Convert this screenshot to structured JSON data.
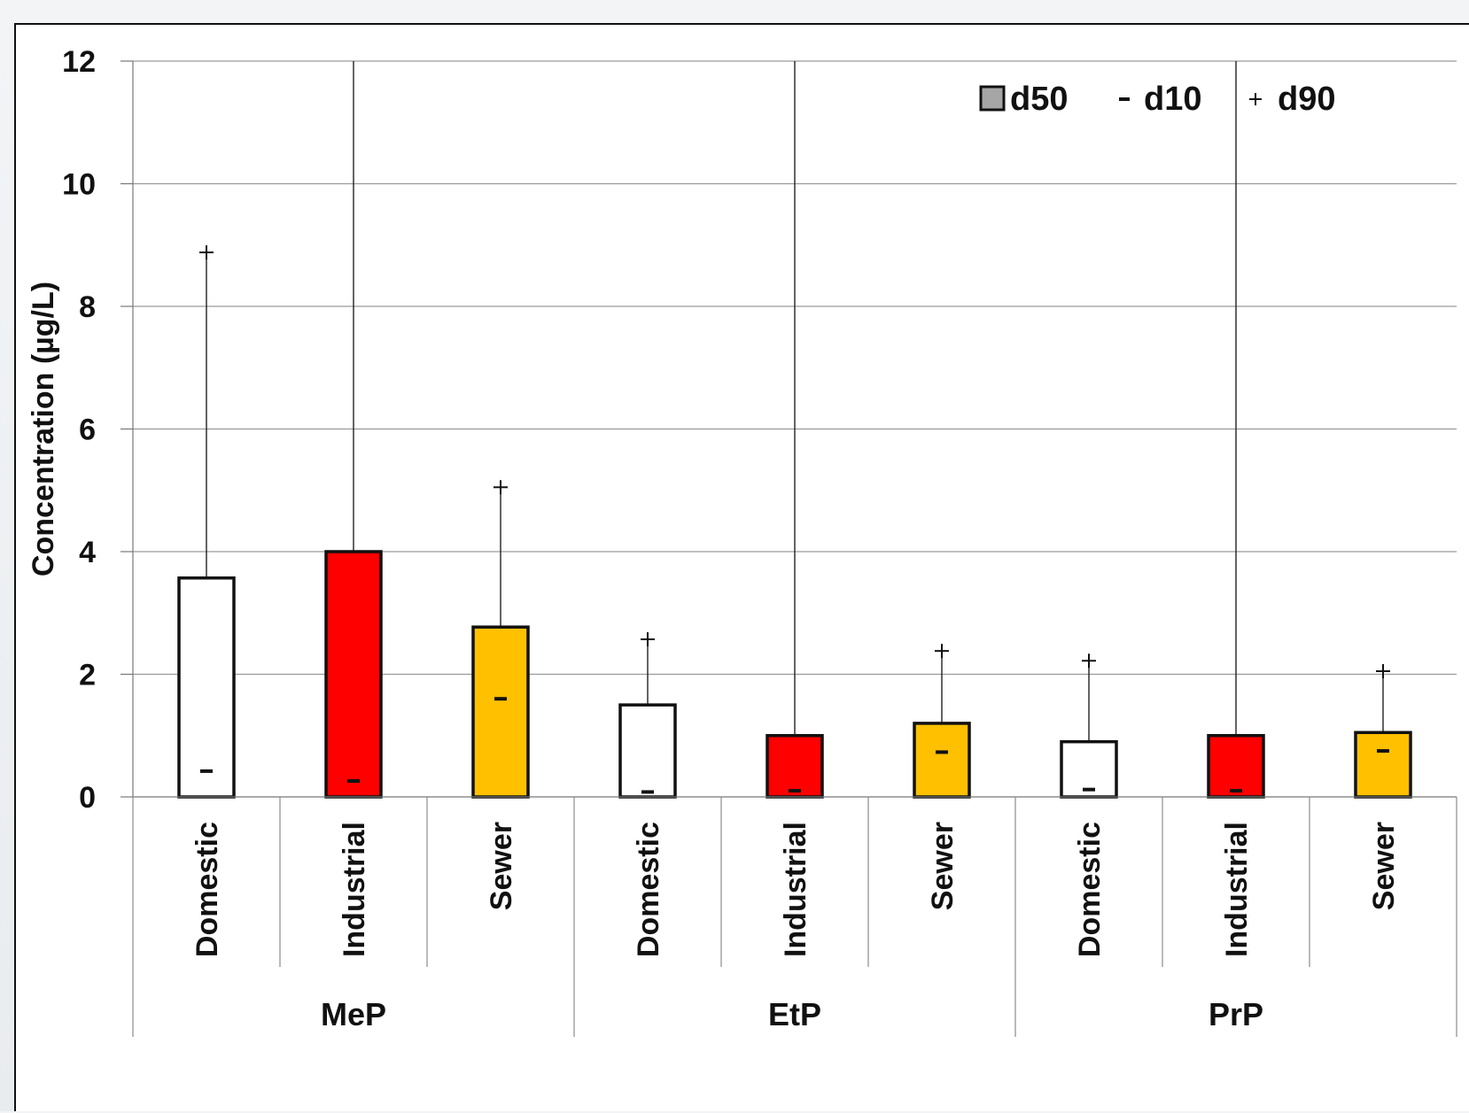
{
  "chart_data": {
    "type": "bar",
    "title": "",
    "ylabel": "Concentration (µg/L)",
    "xlabel": "",
    "ylim": [
      0,
      12
    ],
    "yticks": [
      "0",
      "2",
      "4",
      "6",
      "8",
      "10",
      "12"
    ],
    "grid": true,
    "legend": {
      "position": "top-right",
      "entries": [
        {
          "marker": "square",
          "label": "d50"
        },
        {
          "marker": "dash",
          "label": "d10"
        },
        {
          "marker": "plus",
          "label": "d90"
        }
      ]
    },
    "groups": [
      "MeP",
      "EtP",
      "PrP"
    ],
    "categories": [
      "Domestic",
      "Industrial",
      "Sewer",
      "Domestic",
      "Industrial",
      "Sewer",
      "Domestic",
      "Industrial",
      "Sewer"
    ],
    "category_colors": {
      "Domestic": "#ffffff",
      "Industrial": "#ff0000",
      "Sewer": "#ffc000"
    },
    "series": [
      {
        "name": "d50",
        "values": [
          3.57,
          4.0,
          2.77,
          1.5,
          1.0,
          1.2,
          0.9,
          1.0,
          1.05
        ]
      },
      {
        "name": "d10",
        "values": [
          0.42,
          0.26,
          1.6,
          0.08,
          0.1,
          0.73,
          0.12,
          0.1,
          0.75
        ]
      },
      {
        "name": "d90",
        "values": [
          8.88,
          12,
          5.05,
          2.57,
          12,
          2.38,
          2.22,
          12,
          2.05
        ]
      }
    ]
  }
}
